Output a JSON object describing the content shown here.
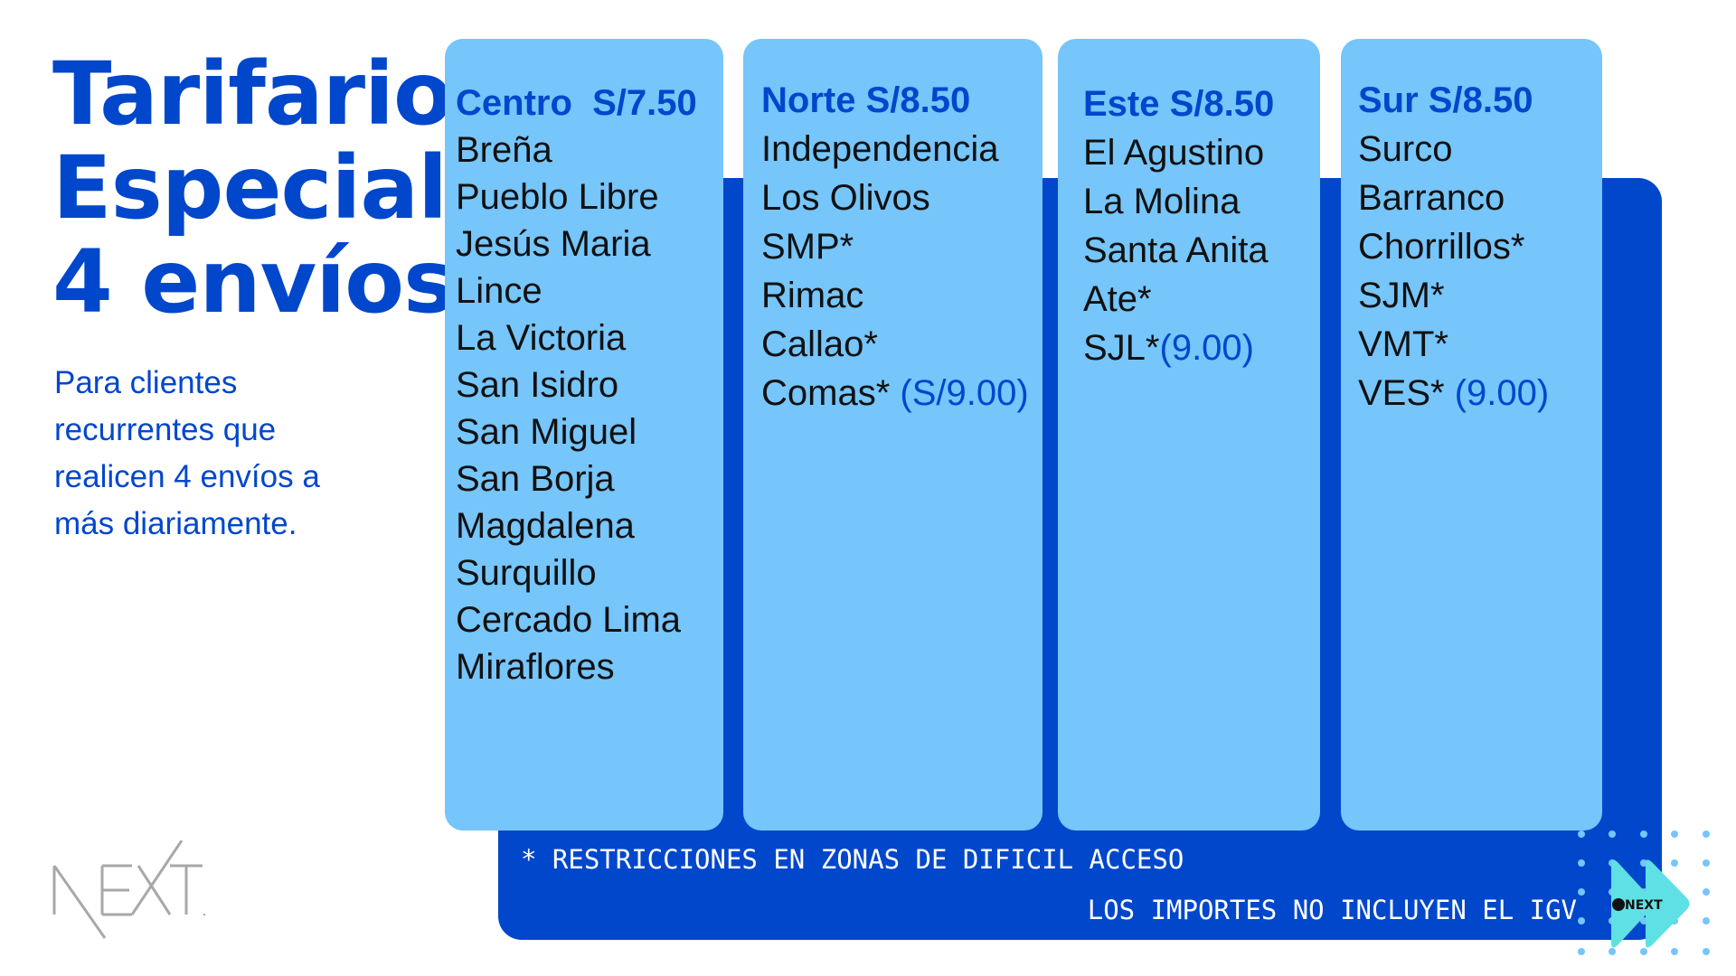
{
  "title": {
    "lines": [
      "Tarifario",
      "Especial",
      "4 envíos"
    ]
  },
  "subtitle": {
    "lines": [
      "Para clientes",
      "recurrentes que",
      "realicen 4 envíos a",
      "más diariamente."
    ]
  },
  "zones": [
    {
      "header": "Centro  S/7.50",
      "items": [
        "Breña",
        "Pueblo Libre",
        "Jesús Maria",
        "Lince",
        "La Victoria",
        "San Isidro",
        "San Miguel",
        "San Borja",
        "Magdalena",
        "Surquillo",
        "Cercado Lima",
        "Miraflores"
      ]
    },
    {
      "header": "Norte S/8.50",
      "items": [
        "Independencia",
        "Los Olivos",
        "SMP*",
        "Rimac",
        "Callao*",
        "Comas*"
      ],
      "extra": " (S/9.00)"
    },
    {
      "header": "Este S/8.50",
      "items": [
        "El Agustino",
        "La Molina",
        "Santa Anita",
        "Ate*",
        "SJL*"
      ],
      "extra": "(9.00)"
    },
    {
      "header": "Sur S/8.50",
      "items": [
        "Surco",
        "Barranco",
        "Chorrillos*",
        "SJM*",
        "VMT*",
        "VES*"
      ],
      "extra": " (9.00)"
    }
  ],
  "notes": {
    "restriction": "* RESTRICCIONES EN ZONAS DE DIFICIL ACCESO",
    "igv": "LOS IMPORTES NO INCLUYEN EL IGV"
  },
  "logos": {
    "main": "NEXT",
    "badge": "NEXT"
  },
  "colors": {
    "primary": "#0047cc",
    "light": "#76c5fb",
    "accent": "#5ee0e4",
    "logo_gray": "#a8a8a8"
  }
}
